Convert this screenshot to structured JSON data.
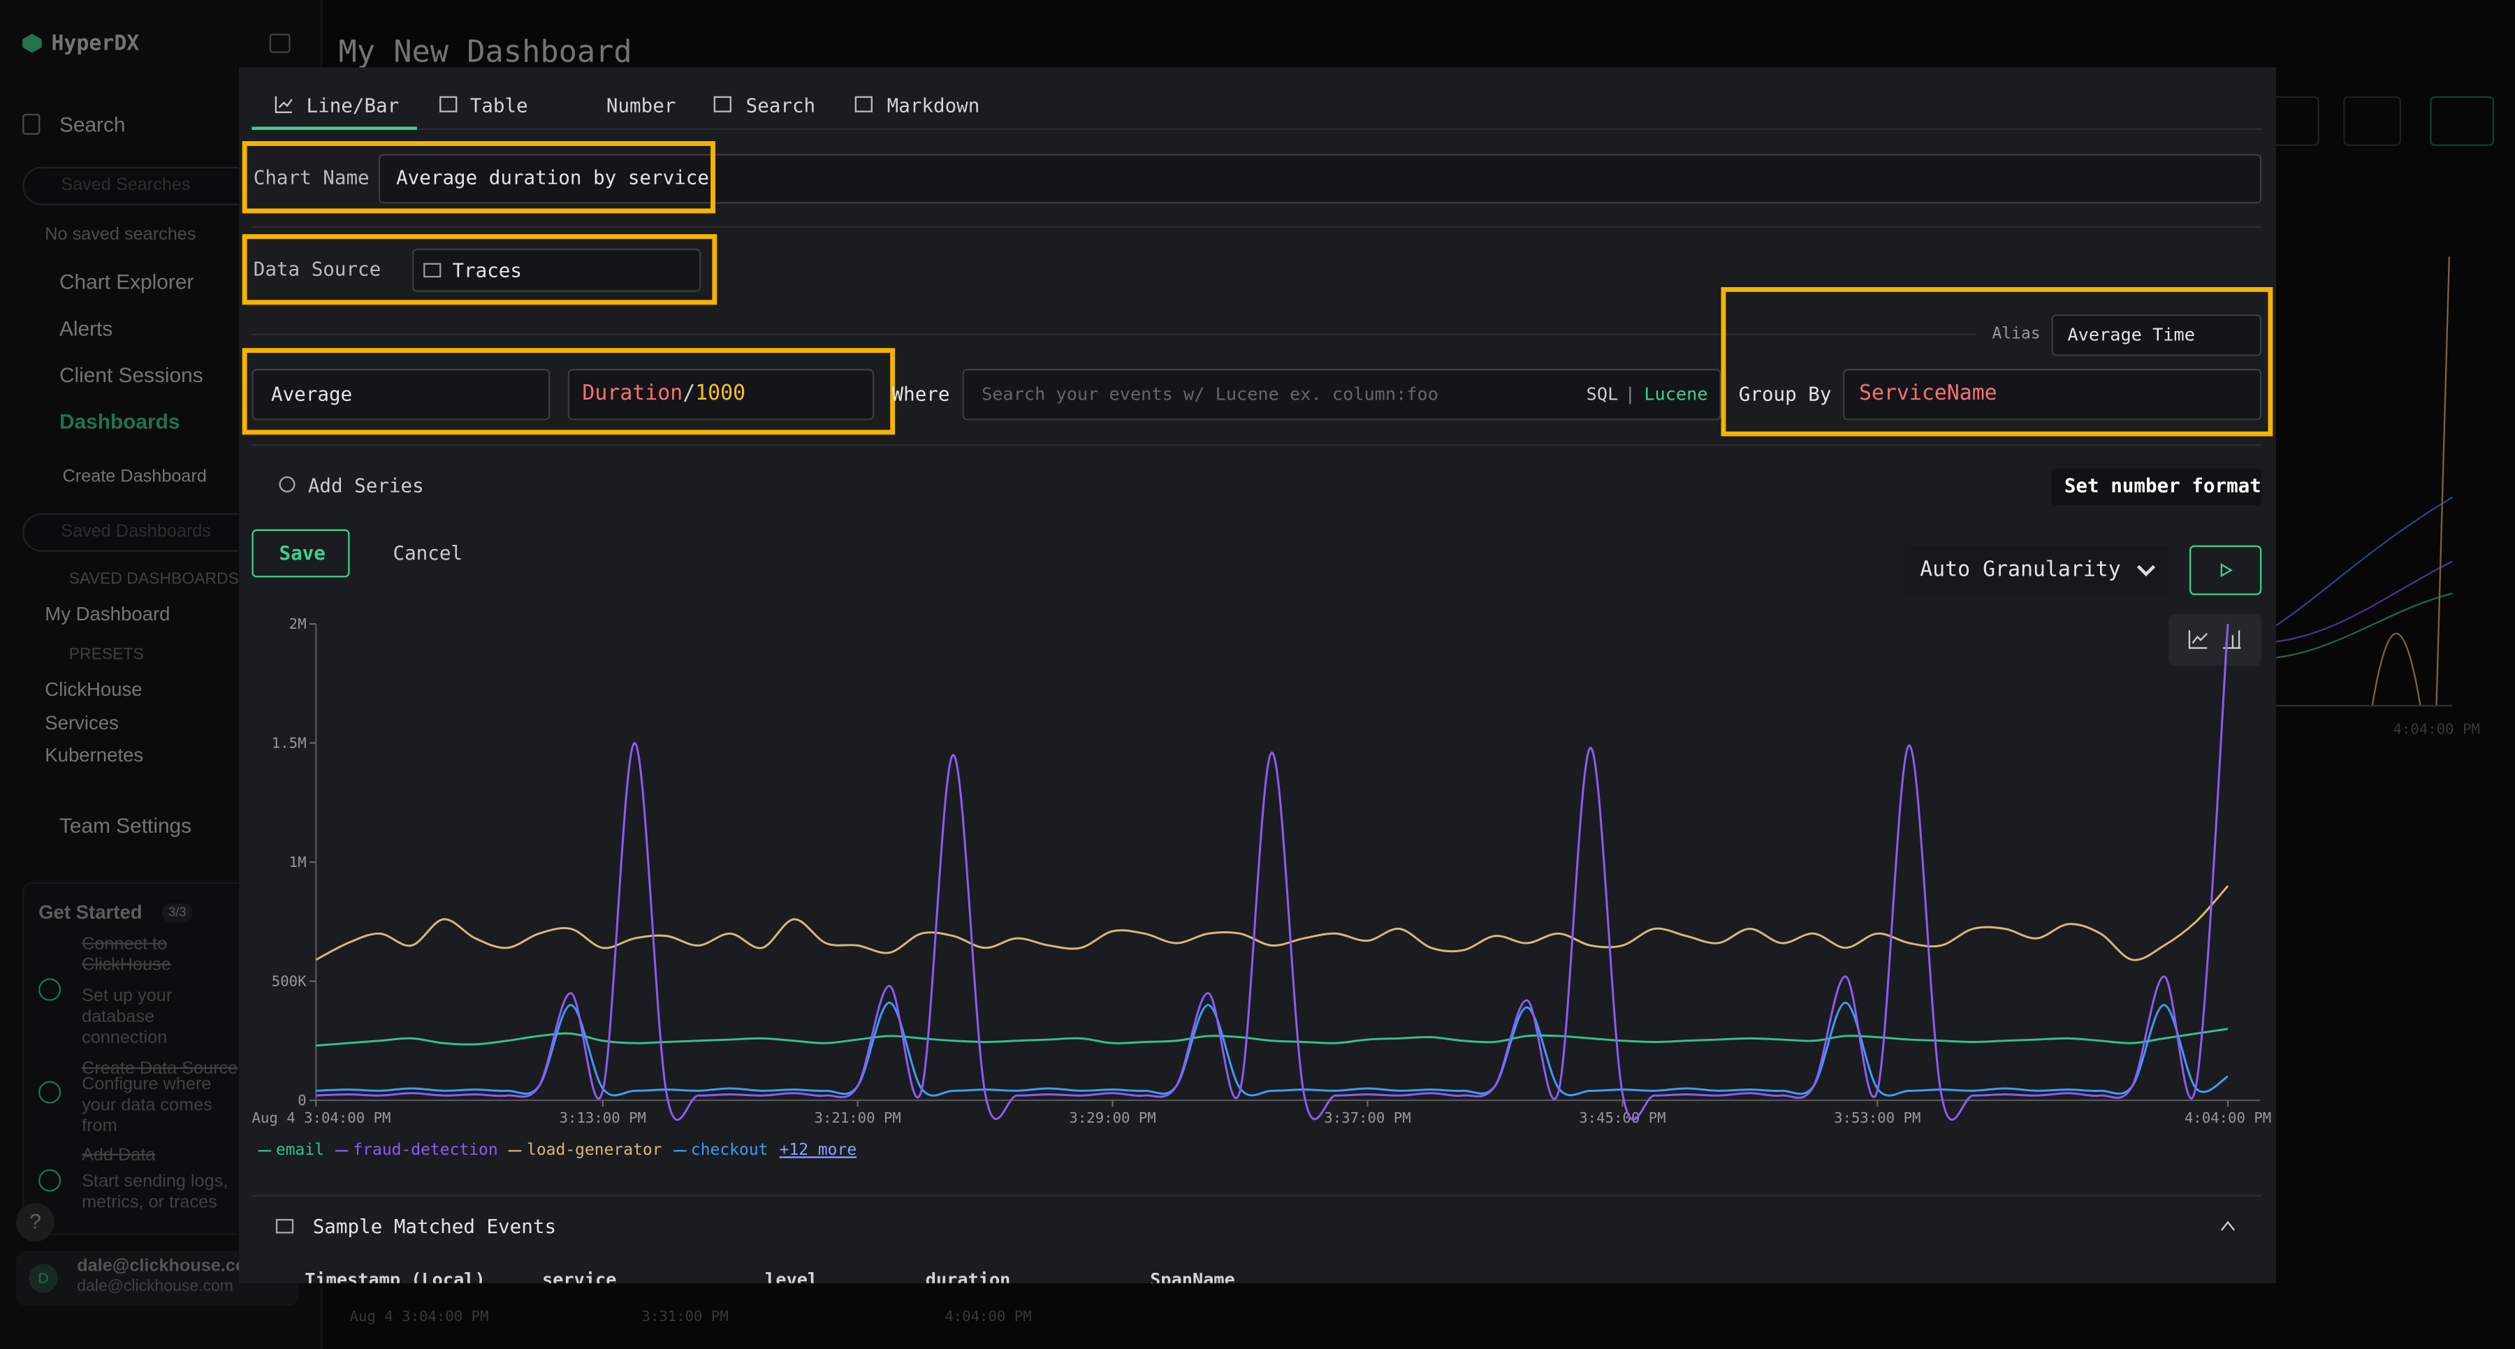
{
  "sidebar": {
    "brand": "HyperDX",
    "search": "Search",
    "saved_searches_placeholder": "Saved Searches",
    "no_saved_searches": "No saved searches",
    "chart_explorer": "Chart Explorer",
    "alerts": "Alerts",
    "client_sessions": "Client Sessions",
    "dashboards": "Dashboards",
    "create_dashboard": "Create Dashboard",
    "saved_dashboards_placeholder": "Saved Dashboards",
    "saved_dashboards_heading": "SAVED DASHBOARDS",
    "saved_dashboards": [
      "My Dashboard"
    ],
    "presets_heading": "PRESETS",
    "presets": [
      "ClickHouse",
      "Services",
      "Kubernetes"
    ],
    "team_settings": "Team Settings",
    "get_started": {
      "title": "Get Started",
      "progress": "3/3",
      "steps": [
        {
          "title": "Connect to ClickHouse",
          "desc": "Set up your database connection"
        },
        {
          "title": "Create Data Source",
          "desc": "Configure where your data comes from"
        },
        {
          "title": "Add Data",
          "desc": "Start sending logs, metrics, or traces"
        }
      ]
    },
    "help": "?",
    "avatar": "D",
    "user": {
      "name": "dale@clickhouse.com",
      "email": "dale@clickhouse.com"
    }
  },
  "dashboard": {
    "title": "My New Dashboard",
    "side_time": "4:04:00 PM",
    "bottom_times": [
      "Aug 4 3:04:00 PM",
      "3:31:00 PM",
      "4:04:00 PM"
    ]
  },
  "editor": {
    "tabs": [
      "Line/Bar",
      "Table",
      "Number",
      "Search",
      "Markdown"
    ],
    "chart_name_label": "Chart Name",
    "chart_name": "Average duration by service",
    "data_source_label": "Data Source",
    "data_source": "Traces",
    "alias_label": "Alias",
    "alias": "Average Time",
    "aggregation": "Average",
    "expression": [
      "Duration",
      "/",
      "1000"
    ],
    "where_label": "Where",
    "where_placeholder": "Search your events w/ Lucene ex. column:foo",
    "sql": "SQL",
    "separator": "|",
    "lucene": "Lucene",
    "group_by_label": "Group By",
    "group_by": "ServiceName",
    "add_series": "Add Series",
    "number_format": "Set number format",
    "save": "Save",
    "cancel": "Cancel",
    "granularity": "Auto Granularity"
  },
  "preview": {
    "type": "line",
    "categories": [
      "Aug 4 3:04:00 PM",
      null,
      null,
      null,
      null,
      null,
      null,
      null,
      null,
      "3:13:00 PM",
      null,
      null,
      null,
      null,
      null,
      null,
      null,
      "3:21:00 PM",
      null,
      null,
      null,
      null,
      null,
      null,
      null,
      "3:29:00 PM",
      null,
      null,
      null,
      null,
      null,
      null,
      null,
      "3:37:00 PM",
      null,
      null,
      null,
      null,
      null,
      null,
      null,
      "3:45:00 PM",
      null,
      null,
      null,
      null,
      null,
      null,
      null,
      "3:53:00 PM",
      null,
      null,
      null,
      null,
      null,
      null,
      null,
      null,
      null,
      null,
      "4:04:00 PM"
    ],
    "ylim": [
      0,
      2000000
    ],
    "yticks": [
      0,
      {
        "value": 500000,
        "label": "500K"
      },
      {
        "value": 1000000,
        "label": "1M"
      },
      {
        "value": 1500000,
        "label": "1.5M"
      },
      {
        "value": 2000000,
        "label": "2M"
      }
    ],
    "series": [
      {
        "name": "email",
        "color": "#34c08b",
        "values": [
          230000,
          240000,
          250000,
          260000,
          240000,
          235000,
          250000,
          270000,
          280000,
          250000,
          240000,
          245000,
          250000,
          255000,
          260000,
          250000,
          240000,
          255000,
          270000,
          260000,
          250000,
          245000,
          250000,
          255000,
          260000,
          240000,
          245000,
          250000,
          270000,
          265000,
          250000,
          245000,
          240000,
          255000,
          260000,
          265000,
          250000,
          245000,
          270000,
          270000,
          260000,
          250000,
          245000,
          250000,
          255000,
          260000,
          255000,
          250000,
          270000,
          265000,
          255000,
          250000,
          245000,
          250000,
          255000,
          260000,
          250000,
          240000,
          260000,
          280000,
          300000
        ]
      },
      {
        "name": "fraud-detection",
        "color": "#8b5cf6",
        "values": [
          20000,
          25000,
          20000,
          30000,
          20000,
          25000,
          20000,
          60000,
          450000,
          40000,
          1500000,
          30000,
          20000,
          25000,
          20000,
          30000,
          20000,
          60000,
          480000,
          40000,
          1450000,
          30000,
          20000,
          25000,
          20000,
          30000,
          20000,
          60000,
          450000,
          40000,
          1460000,
          30000,
          20000,
          25000,
          20000,
          30000,
          20000,
          60000,
          420000,
          40000,
          1480000,
          30000,
          20000,
          25000,
          20000,
          30000,
          20000,
          60000,
          520000,
          40000,
          1490000,
          30000,
          20000,
          25000,
          20000,
          30000,
          20000,
          60000,
          520000,
          60000,
          2000000
        ]
      },
      {
        "name": "load-generator",
        "color": "#d9b67c",
        "values": [
          590000,
          660000,
          700000,
          650000,
          760000,
          680000,
          640000,
          700000,
          720000,
          640000,
          680000,
          690000,
          650000,
          700000,
          640000,
          760000,
          660000,
          650000,
          620000,
          700000,
          690000,
          640000,
          680000,
          650000,
          640000,
          710000,
          700000,
          660000,
          700000,
          700000,
          650000,
          680000,
          700000,
          670000,
          720000,
          640000,
          630000,
          690000,
          660000,
          700000,
          650000,
          650000,
          720000,
          690000,
          660000,
          720000,
          660000,
          700000,
          640000,
          700000,
          660000,
          650000,
          720000,
          720000,
          680000,
          740000,
          700000,
          590000,
          650000,
          750000,
          900000
        ]
      },
      {
        "name": "checkout",
        "color": "#3b9df6",
        "values": [
          40000,
          45000,
          40000,
          50000,
          40000,
          45000,
          40000,
          60000,
          400000,
          50000,
          40000,
          45000,
          40000,
          50000,
          40000,
          45000,
          40000,
          60000,
          410000,
          50000,
          40000,
          45000,
          40000,
          50000,
          40000,
          45000,
          40000,
          60000,
          400000,
          50000,
          40000,
          45000,
          40000,
          50000,
          40000,
          45000,
          40000,
          60000,
          390000,
          50000,
          40000,
          45000,
          40000,
          50000,
          40000,
          45000,
          40000,
          60000,
          410000,
          50000,
          40000,
          45000,
          40000,
          50000,
          40000,
          45000,
          40000,
          60000,
          400000,
          50000,
          100000
        ]
      }
    ],
    "legend_more": "+12 more"
  },
  "table": {
    "title": "Sample Matched Events",
    "headers": [
      "Timestamp (Local)",
      "service",
      "level",
      "duration",
      "SpanName"
    ]
  }
}
